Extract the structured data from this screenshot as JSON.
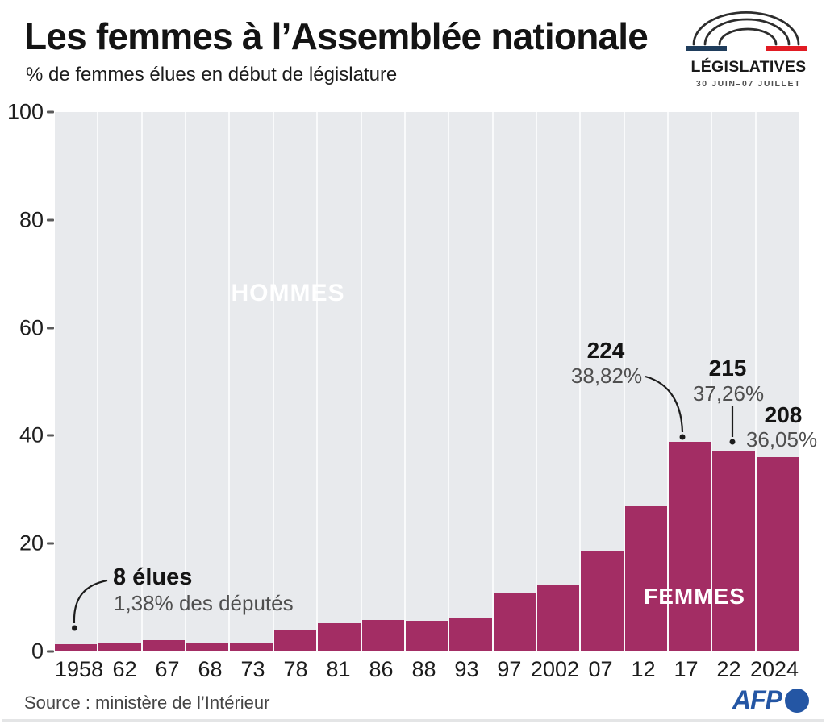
{
  "header": {
    "title": "Les femmes à l’Assemblée nationale",
    "subtitle": "% de femmes élues en début de législature"
  },
  "logo": {
    "label": "LÉGISLATIVES",
    "dates": "30 JUIN–07 JUILLET",
    "flag_blue": "#1f3d5c",
    "flag_red": "#e11b23"
  },
  "chart_data": {
    "type": "bar",
    "title": "Les femmes à l’Assemblée nationale",
    "subtitle": "% de femmes élues en début de législature",
    "xlabel": "",
    "ylabel": "% de femmes élues",
    "ylim": [
      0,
      100
    ],
    "yticks": [
      0,
      20,
      40,
      60,
      80,
      100
    ],
    "grid": "vertical-white-separators",
    "categories": [
      "1958",
      "62",
      "67",
      "68",
      "73",
      "78",
      "81",
      "86",
      "88",
      "93",
      "97",
      "2002",
      "07",
      "12",
      "17",
      "22",
      "2024"
    ],
    "values": [
      1.38,
      1.66,
      2.05,
      1.64,
      1.63,
      4.07,
      5.3,
      5.89,
      5.72,
      6.07,
      10.92,
      12.31,
      18.54,
      26.86,
      38.82,
      37.26,
      36.05
    ],
    "bar_color": "#a32d64",
    "bg_color": "#e8eaed",
    "area_labels": {
      "men": "HOMMES",
      "women": "FEMMES"
    },
    "annotations": [
      {
        "bold": "8 élues",
        "detail": "1,38% des députés",
        "year": "1958"
      },
      {
        "bold": "224",
        "detail": "38,82%",
        "year": "17"
      },
      {
        "bold": "215",
        "detail": "37,26%",
        "year": "22"
      },
      {
        "bold": "208",
        "detail": "36,05%",
        "year": "2024"
      }
    ]
  },
  "footer": {
    "source": "Source : ministère de l’Intérieur",
    "agency": "AFP",
    "agency_color": "#2456a4"
  }
}
